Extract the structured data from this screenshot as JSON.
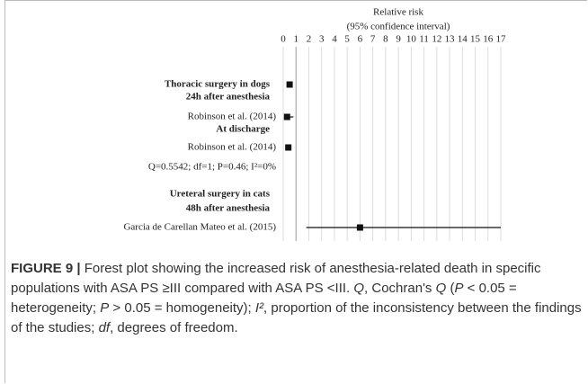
{
  "chart_data": {
    "type": "forest",
    "axis_title": [
      "Relative risk",
      "(95% confidence interval)"
    ],
    "xlim": [
      0,
      17
    ],
    "xticks": [
      0,
      1,
      2,
      3,
      4,
      5,
      6,
      7,
      8,
      9,
      10,
      11,
      12,
      13,
      14,
      15,
      16,
      17
    ],
    "rows": [
      "Thoracic surgery in dogs",
      "24h after anesthesia",
      "Robinson et al. (2014)",
      "At discharge",
      "Robinson et al. (2014)",
      "Q=0.5542; df=1; P=0.46; I²=0%",
      "Ureteral surgery in cats",
      "48h after anesthesia",
      "Garcia de Carellan Mateo et al. (2015)"
    ],
    "heading": [
      true,
      true,
      false,
      true,
      false,
      false,
      true,
      true,
      false
    ],
    "values": [
      0.5,
      null,
      0.3,
      null,
      0.4,
      null,
      null,
      null,
      6.0
    ],
    "ci_low": [
      null,
      null,
      0.1,
      null,
      null,
      null,
      null,
      null,
      1.8
    ],
    "ci_high": [
      null,
      null,
      0.8,
      null,
      null,
      null,
      null,
      null,
      17
    ],
    "grid": true
  },
  "caption": [
    {
      "text": "FIGURE 9 |",
      "style": "bold"
    },
    {
      "text": " Forest plot showing the increased risk of anesthesia-related death in specific populations with ASA PS ≥III compared with ASA PS <III. ",
      "style": "normal"
    },
    {
      "text": "Q",
      "style": "italic"
    },
    {
      "text": ", Cochran's ",
      "style": "normal"
    },
    {
      "text": "Q",
      "style": "italic"
    },
    {
      "text": " (",
      "style": "normal"
    },
    {
      "text": "P",
      "style": "italic"
    },
    {
      "text": " < 0.05 = heterogeneity; ",
      "style": "normal"
    },
    {
      "text": "P",
      "style": "italic"
    },
    {
      "text": " >  0.05 = homogeneity); ",
      "style": "normal"
    },
    {
      "text": "I²",
      "style": "italic"
    },
    {
      "text": ", proportion of the inconsistency between the findings of the studies; ",
      "style": "normal"
    },
    {
      "text": "df",
      "style": "italic"
    },
    {
      "text": ", degrees of freedom.",
      "style": "normal"
    }
  ]
}
